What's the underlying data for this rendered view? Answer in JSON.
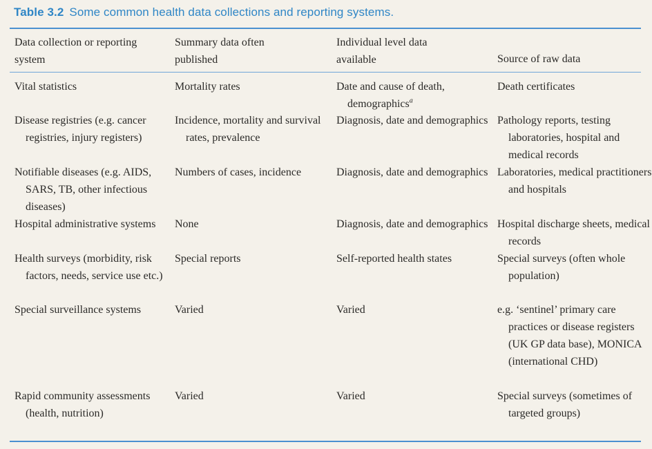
{
  "caption": {
    "label": "Table 3.2",
    "text": "Some common health data collections and reporting systems."
  },
  "headers": {
    "col1": "Data collection or reporting\nsystem",
    "col2": "Summary data often\npublished",
    "col3": "Individual level data\navailable",
    "col4": "Source of raw data"
  },
  "rows": [
    {
      "system": "Vital statistics",
      "summary": "Mortality rates",
      "individual": "Date and cause of death, demographics",
      "individual_note": "a",
      "source": "Death certificates"
    },
    {
      "system": "Disease registries (e.g. cancer registries, injury registers)",
      "summary": "Incidence, mortality and survival rates, prevalence",
      "individual": "Diagnosis, date and demographics",
      "source": "Pathology reports, testing laboratories, hospital and medical records"
    },
    {
      "system": "Notifiable diseases (e.g. AIDS, SARS, TB, other infectious diseases)",
      "summary": "Numbers of cases, incidence",
      "individual": "Diagnosis, date and demographics",
      "source": "Laboratories, medical practitioners and hospitals"
    },
    {
      "system": "Hospital administrative systems",
      "summary": "None",
      "individual": "Diagnosis, date and demographics",
      "source": "Hospital discharge sheets, medical records"
    },
    {
      "system": "Health surveys (morbidity, risk factors, needs, service use etc.)",
      "summary": "Special reports",
      "individual": "Self-reported health states",
      "source": "Special surveys (often whole population)"
    },
    {
      "system": "Special surveillance systems",
      "summary": "Varied",
      "individual": "Varied",
      "source": "e.g. ‘sentinel’ primary care practices or disease registers (UK GP data base), MONICA (international CHD)"
    },
    {
      "system": "Rapid community assessments (health, nutrition)",
      "summary": "Varied",
      "individual": "Varied",
      "source": "Special surveys (sometimes of targeted groups)"
    }
  ]
}
